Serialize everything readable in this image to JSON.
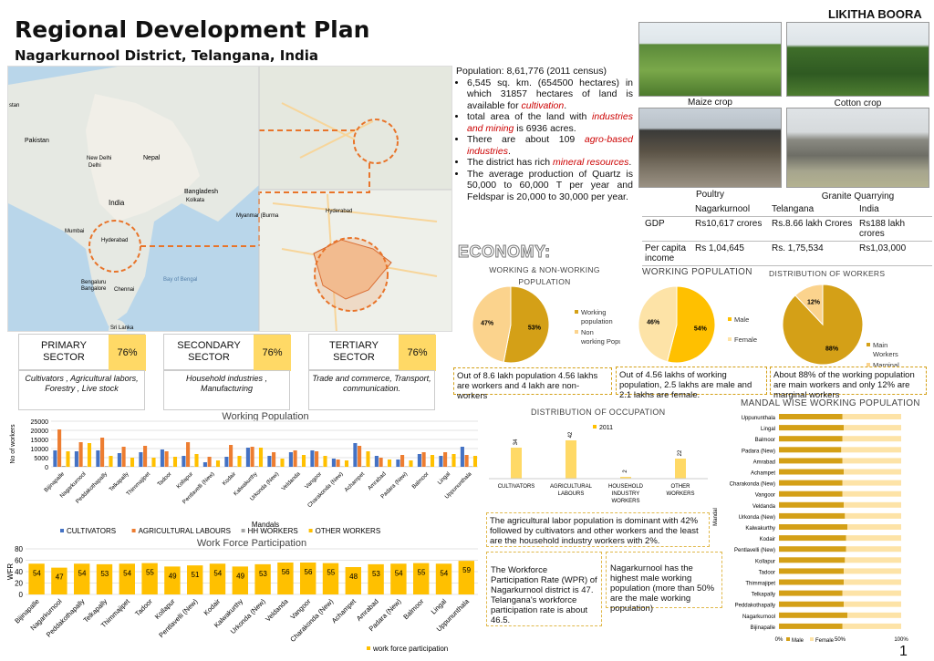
{
  "header": {
    "title": "Regional Development Plan",
    "subtitle": "Nagarkurnool District, Telangana, India",
    "author": "LIKITHA BOORA",
    "page": "1"
  },
  "map": {
    "labels": [
      "Pakistan",
      "Nepal",
      "New Delhi",
      "Delhi",
      "India",
      "Bangladesh",
      "Myanmar (Burma",
      "Kolkata",
      "Mumbai",
      "Hyderabad",
      "Bengaluru",
      "Bangalore",
      "Chennai",
      "Bay of Bengal",
      "Sri Lanka",
      "stan",
      "Hyderabad"
    ]
  },
  "photos": [
    {
      "caption": "Maize crop"
    },
    {
      "caption": "Cotton crop"
    },
    {
      "caption": "Poultry"
    },
    {
      "caption": "Granite Quarrying"
    }
  ],
  "population": {
    "headline": "Population: 8,61,776 (2011 census)",
    "bullets": [
      {
        "parts": [
          "6,545 sq. km. (654500 hectares) in which 31857 hectares of land is available for ",
          "cultivation",
          "."
        ]
      },
      {
        "parts": [
          "total area of the land with ",
          "industries and mining",
          " is 6936 acres."
        ]
      },
      {
        "parts": [
          "There are about 109 ",
          "agro-based industries",
          "."
        ]
      },
      {
        "parts": [
          "The district has rich ",
          "mineral resources",
          "."
        ]
      },
      {
        "parts": [
          "The average production of Quartz is 50,000 to 60,000 T per year and Feldspar is 20,000 to 30,000 per year.",
          "",
          ""
        ]
      }
    ]
  },
  "economy_table": {
    "header": [
      "",
      "Nagarkurnool",
      "Telangana",
      "India"
    ],
    "rows": [
      [
        "GDP",
        "Rs10,617  crores",
        "Rs.8.66 lakh Crores",
        "Rs188 lakh crores"
      ],
      [
        "Per capita income",
        "Rs 1,04,645",
        "Rs. 1,75,534",
        "Rs1,03,000"
      ]
    ]
  },
  "economy_label": "ECONOMY:",
  "pies": [
    {
      "title": "WORKING & NON-WORKING POPULATION",
      "slices": [
        {
          "label": "Working population",
          "value": 53,
          "color": "#d4a017"
        },
        {
          "label": "Non working Population",
          "value": 47,
          "color": "#fbd38d"
        }
      ],
      "labels": [
        "53%",
        "47%"
      ],
      "note": "Out of 8.6 lakh population 4.56 lakhs are workers and 4 lakh are non-workers"
    },
    {
      "title": "WORKING POPULATION",
      "slices": [
        {
          "label": "Male",
          "value": 54,
          "color": "#ffc000"
        },
        {
          "label": "Female",
          "value": 46,
          "color": "#fde3a7"
        }
      ],
      "labels": [
        "54%",
        "46%"
      ],
      "note": "Out of 4.56 lakhs of working population, 2.5 lakhs are male and 2.1 lakhs are female."
    },
    {
      "title": "DISTRIBUTION OF WORKERS",
      "slices": [
        {
          "label": "Main Workers",
          "value": 88,
          "color": "#d4a017"
        },
        {
          "label": "Marginal workers",
          "value": 12,
          "color": "#fbd38d"
        }
      ],
      "labels": [
        "88%",
        "12%"
      ],
      "note": "About 88% of the working population are main workers and only 12% are marginal workers"
    }
  ],
  "sectors": [
    {
      "name": "PRIMARY SECTOR",
      "pct": "76%",
      "desc": "Cultivators , Agricultural labors, Forestry , Live stock"
    },
    {
      "name": "SECONDARY SECTOR",
      "pct": "76%",
      "desc": "Household industries , Manufacturing"
    },
    {
      "name": "TERTIARY SECTOR",
      "pct": "76%",
      "desc": "Trade and commerce, Transport, communication."
    }
  ],
  "occupation": {
    "title": "DISTRIBUTION OF OCCUPATION",
    "legend": "2011",
    "note": "The agricultural labor population is dominant with 42% followed by cultivators and other workers and the least are the household industry workers with 2%."
  },
  "wpr_notes": [
    "The Workforce Participation Rate (WPR) of Nagarkurnool district is 47. Telangana's workforce participation rate is about 46.5.",
    "Nagarkurnool has the highest male working population (more than 50% are the male working population)"
  ],
  "chart_data": [
    {
      "type": "bar",
      "title": "Working Population",
      "xlabel": "Mandals",
      "ylabel": "No of workers",
      "ylim": [
        0,
        25000
      ],
      "yticks": [
        0,
        5000,
        10000,
        15000,
        20000,
        25000
      ],
      "categories": [
        "Bijinapalle",
        "Nagarkurnool",
        "Peddakothapally",
        "Telkapally",
        "Thimmajipet",
        "Tadoor",
        "Kollapur",
        "Pentlavelli (New)",
        "Kodair",
        "Kalwakurthy",
        "Urkonda (New)",
        "Veldanda",
        "Vangoor",
        "Charakonda (New)",
        "Achampet",
        "Amrabad",
        "Padara (New)",
        "Balmoor",
        "Lingal",
        "Uppununthala"
      ],
      "series": [
        {
          "name": "CULTIVATORS",
          "color": "#4472c4",
          "values": [
            9000,
            8500,
            9000,
            7500,
            8000,
            9500,
            6000,
            2500,
            5500,
            10500,
            6000,
            8000,
            9000,
            4500,
            13000,
            6000,
            4000,
            7000,
            6000,
            11000
          ]
        },
        {
          "name": "AGRICULTURAL LABOURS",
          "color": "#ed7d31",
          "values": [
            20500,
            13500,
            16000,
            11000,
            11500,
            8500,
            13500,
            5500,
            12000,
            11000,
            8000,
            9000,
            8500,
            4000,
            11500,
            5000,
            6500,
            8000,
            8000,
            6500
          ]
        },
        {
          "name": "HH WORKERS",
          "color": "#a5a5a5",
          "values": [
            500,
            400,
            400,
            300,
            300,
            300,
            300,
            200,
            300,
            400,
            300,
            300,
            300,
            200,
            400,
            200,
            200,
            300,
            300,
            300
          ]
        },
        {
          "name": "OTHER WORKERS",
          "color": "#ffc000",
          "values": [
            8500,
            13000,
            6000,
            5000,
            5000,
            5500,
            7000,
            3500,
            6000,
            10500,
            4500,
            6500,
            6000,
            3500,
            8500,
            4000,
            3500,
            6500,
            7000,
            6000
          ]
        }
      ]
    },
    {
      "type": "bar",
      "title": "Work Force Participation",
      "ylabel": "WFR",
      "ylim": [
        0,
        80
      ],
      "yticks": [
        0,
        20,
        40,
        60,
        80
      ],
      "categories": [
        "Bijinapalle",
        "Nagarkurnool",
        "Peddakothapally",
        "Telkapally",
        "Thimmajipet",
        "Tadoor",
        "Kollapur",
        "Pentlavelli (New)",
        "Kodair",
        "Kalwakurthy",
        "Urkonda (New)",
        "Veldanda",
        "Vangoor",
        "Charakonda (New)",
        "Achampet",
        "Amrabad",
        "Padara (New)",
        "Balmoor",
        "Lingal",
        "Uppununthala"
      ],
      "series": [
        {
          "name": "work force participation",
          "color": "#ffc000",
          "values": [
            54,
            47,
            54,
            53,
            54,
            55,
            49,
            51,
            54,
            49,
            53,
            56,
            56,
            55,
            48,
            53,
            54,
            55,
            54,
            59
          ]
        }
      ]
    },
    {
      "type": "bar",
      "title": "DISTRIBUTION OF OCCUPATION",
      "categories": [
        "CULTIVATORS",
        "AGRICULTURAL LABOURS",
        "HOUSEHOLD INDUSTRY WORKERS",
        "OTHER WORKERS"
      ],
      "series": [
        {
          "name": "2011",
          "color": "#ffc000",
          "values": [
            34,
            42,
            2,
            22
          ]
        }
      ]
    },
    {
      "type": "bar",
      "title": "MANDAL WISE WORKING POPULATION",
      "orientation": "horizontal",
      "xticks": [
        "0%",
        "50%",
        "100%"
      ],
      "categories": [
        "Uppununthala",
        "Lingal",
        "Balmoor",
        "Padara (New)",
        "Amrabad",
        "Achampet",
        "Charakonda (New)",
        "Vangoor",
        "Veldanda",
        "Urkonda (New)",
        "Kalwakurthy",
        "Kodair",
        "Pentlavelli (New)",
        "Kollapur",
        "Tadoor",
        "Thimmajipet",
        "Telkapally",
        "Peddakothapally",
        "Nagarkurnool",
        "Bijinapalle"
      ],
      "ylabel": "Mandal",
      "series": [
        {
          "name": "Male",
          "color": "#d4a017",
          "values": [
            52,
            53,
            52,
            51,
            52,
            53,
            52,
            52,
            53,
            54,
            56,
            55,
            55,
            54,
            53,
            53,
            52,
            53,
            56,
            52
          ]
        },
        {
          "name": "Female",
          "color": "#fde3a7",
          "values": [
            48,
            47,
            48,
            49,
            48,
            47,
            48,
            48,
            47,
            46,
            44,
            45,
            45,
            46,
            47,
            47,
            48,
            47,
            44,
            48
          ]
        }
      ]
    }
  ]
}
